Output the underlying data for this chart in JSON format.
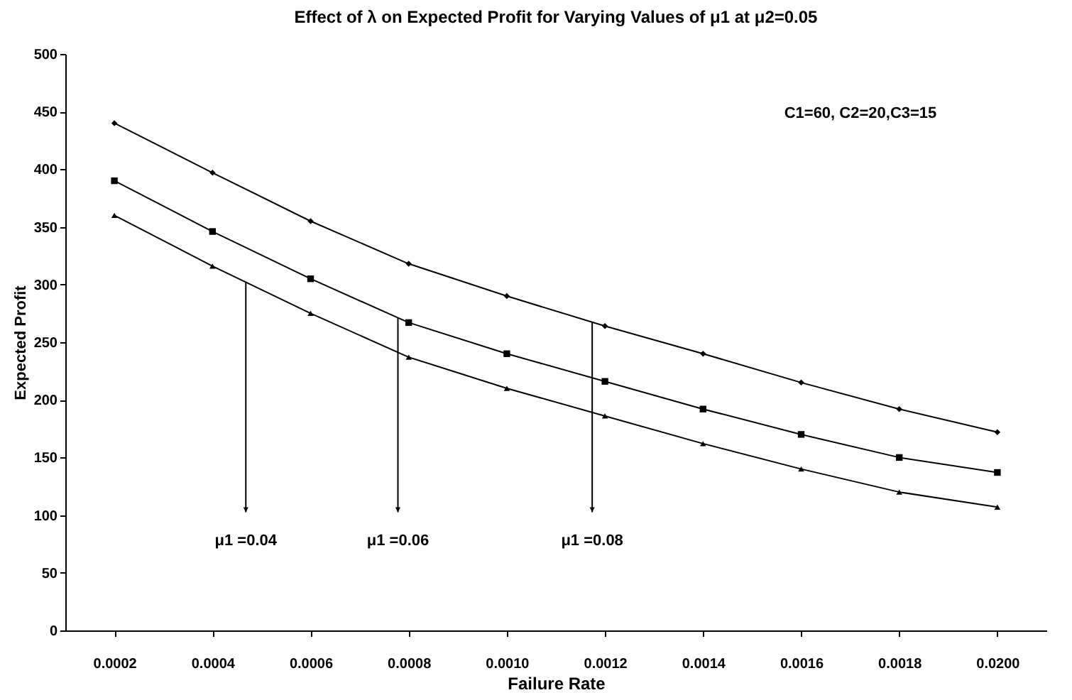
{
  "chart_data": {
    "type": "line",
    "title": "Effect of λ on Expected Profit for Varying Values of μ1 at μ2=0.05",
    "xlabel": "Failure Rate",
    "ylabel": "Expected Profit",
    "categories": [
      "0.0002",
      "0.0004",
      "0.0006",
      "0.0008",
      "0.0010",
      "0.0012",
      "0.0014",
      "0.0016",
      "0.0018",
      "0.0200"
    ],
    "series": [
      {
        "color": "#000000",
        "marker": "triangle",
        "values": [
          360,
          316,
          275,
          237,
          210,
          186,
          162,
          140,
          120,
          107
        ]
      },
      {
        "color": "#000000",
        "marker": "square",
        "values": [
          390,
          346,
          305,
          267,
          240,
          216,
          192,
          170,
          150,
          137
        ]
      },
      {
        "color": "#000000",
        "marker": "diamond",
        "values": [
          440,
          397,
          355,
          318,
          290,
          264,
          240,
          215,
          192,
          172
        ]
      }
    ],
    "ylim": [
      0,
      500
    ],
    "yticks": [
      0,
      50,
      100,
      150,
      200,
      250,
      300,
      350,
      400,
      450,
      500
    ],
    "grid": false,
    "line_style": "solid",
    "annotations": [
      "μ1 =0.04",
      "μ1 =0.06",
      "μ1 =0.08",
      "C1=60, C2=20,C3=15"
    ]
  }
}
